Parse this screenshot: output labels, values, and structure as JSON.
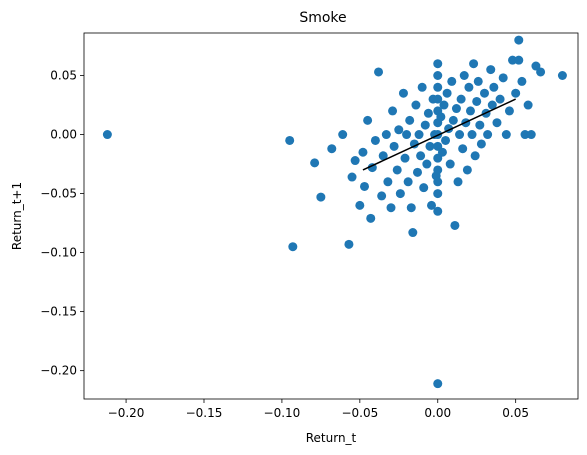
{
  "chart_data": {
    "type": "scatter",
    "title": "Smoke",
    "xlabel": "Return_t",
    "ylabel": "Return_t+1",
    "xlim": [
      -0.227,
      0.09
    ],
    "ylim": [
      -0.224,
      0.086
    ],
    "x_ticks": [
      -0.2,
      -0.15,
      -0.1,
      -0.05,
      0.0,
      0.05
    ],
    "x_tick_labels": [
      "−0.20",
      "−0.15",
      "−0.10",
      "−0.05",
      "0.00",
      "0.05"
    ],
    "y_ticks": [
      -0.2,
      -0.15,
      -0.1,
      -0.05,
      0.0,
      0.05
    ],
    "y_tick_labels": [
      "−0.20",
      "−0.15",
      "−0.10",
      "−0.05",
      "0.00",
      "0.05"
    ],
    "grid": false,
    "colors": {
      "points": "#1f77b4",
      "fit_line": "#000000"
    },
    "fit_line": {
      "x": [
        -0.048,
        0.05
      ],
      "y": [
        -0.03,
        0.03
      ]
    },
    "points": [
      [
        -0.212,
        0.0
      ],
      [
        -0.093,
        -0.095
      ],
      [
        -0.095,
        -0.005
      ],
      [
        -0.079,
        -0.024
      ],
      [
        -0.075,
        -0.053
      ],
      [
        -0.068,
        -0.012
      ],
      [
        -0.061,
        0.0
      ],
      [
        -0.057,
        -0.093
      ],
      [
        -0.055,
        -0.036
      ],
      [
        -0.053,
        -0.022
      ],
      [
        -0.05,
        -0.06
      ],
      [
        -0.048,
        -0.015
      ],
      [
        -0.047,
        -0.044
      ],
      [
        -0.045,
        0.012
      ],
      [
        -0.043,
        -0.071
      ],
      [
        -0.042,
        -0.028
      ],
      [
        -0.04,
        -0.005
      ],
      [
        -0.038,
        0.053
      ],
      [
        -0.036,
        -0.052
      ],
      [
        -0.035,
        -0.018
      ],
      [
        -0.033,
        0.0
      ],
      [
        -0.032,
        -0.04
      ],
      [
        -0.03,
        -0.062
      ],
      [
        -0.029,
        0.02
      ],
      [
        -0.028,
        -0.01
      ],
      [
        -0.026,
        -0.03
      ],
      [
        -0.025,
        0.004
      ],
      [
        -0.024,
        -0.05
      ],
      [
        -0.022,
        0.035
      ],
      [
        -0.021,
        -0.02
      ],
      [
        -0.02,
        0.0
      ],
      [
        -0.019,
        -0.04
      ],
      [
        -0.018,
        0.012
      ],
      [
        -0.017,
        -0.062
      ],
      [
        -0.016,
        -0.083
      ],
      [
        -0.015,
        -0.008
      ],
      [
        -0.014,
        0.025
      ],
      [
        -0.013,
        -0.032
      ],
      [
        -0.012,
        0.0
      ],
      [
        -0.011,
        -0.018
      ],
      [
        -0.01,
        0.04
      ],
      [
        -0.009,
        -0.045
      ],
      [
        -0.008,
        0.008
      ],
      [
        -0.007,
        -0.025
      ],
      [
        -0.006,
        0.018
      ],
      [
        -0.005,
        -0.01
      ],
      [
        -0.004,
        -0.06
      ],
      [
        -0.003,
        0.03
      ],
      [
        -0.002,
        0.0
      ],
      [
        -0.001,
        -0.035
      ],
      [
        0.0,
        0.06
      ],
      [
        0.0,
        0.05
      ],
      [
        0.0,
        0.04
      ],
      [
        0.0,
        0.03
      ],
      [
        0.0,
        0.02
      ],
      [
        0.0,
        0.01
      ],
      [
        0.0,
        0.0
      ],
      [
        0.0,
        -0.01
      ],
      [
        0.0,
        -0.02
      ],
      [
        0.0,
        -0.03
      ],
      [
        0.0,
        -0.04
      ],
      [
        0.0,
        -0.05
      ],
      [
        0.0,
        -0.065
      ],
      [
        0.0,
        -0.211
      ],
      [
        0.002,
        0.015
      ],
      [
        0.003,
        -0.015
      ],
      [
        0.004,
        0.025
      ],
      [
        0.005,
        -0.005
      ],
      [
        0.006,
        0.035
      ],
      [
        0.007,
        0.005
      ],
      [
        0.008,
        -0.025
      ],
      [
        0.009,
        0.045
      ],
      [
        0.01,
        0.012
      ],
      [
        0.011,
        -0.077
      ],
      [
        0.012,
        0.022
      ],
      [
        0.013,
        -0.04
      ],
      [
        0.014,
        0.0
      ],
      [
        0.015,
        0.03
      ],
      [
        0.016,
        -0.012
      ],
      [
        0.017,
        0.05
      ],
      [
        0.018,
        0.01
      ],
      [
        0.019,
        -0.03
      ],
      [
        0.02,
        0.04
      ],
      [
        0.021,
        0.02
      ],
      [
        0.022,
        0.0
      ],
      [
        0.023,
        0.06
      ],
      [
        0.024,
        -0.018
      ],
      [
        0.025,
        0.028
      ],
      [
        0.026,
        0.045
      ],
      [
        0.027,
        0.008
      ],
      [
        0.028,
        -0.008
      ],
      [
        0.03,
        0.035
      ],
      [
        0.031,
        0.018
      ],
      [
        0.032,
        0.0
      ],
      [
        0.034,
        0.055
      ],
      [
        0.035,
        0.025
      ],
      [
        0.036,
        0.04
      ],
      [
        0.038,
        0.01
      ],
      [
        0.04,
        0.03
      ],
      [
        0.042,
        0.048
      ],
      [
        0.044,
        0.0
      ],
      [
        0.046,
        0.02
      ],
      [
        0.048,
        0.063
      ],
      [
        0.05,
        0.035
      ],
      [
        0.052,
        0.063
      ],
      [
        0.052,
        0.08
      ],
      [
        0.054,
        0.045
      ],
      [
        0.056,
        0.0
      ],
      [
        0.058,
        0.025
      ],
      [
        0.06,
        0.0
      ],
      [
        0.063,
        0.058
      ],
      [
        0.066,
        0.053
      ],
      [
        0.08,
        0.05
      ]
    ]
  }
}
